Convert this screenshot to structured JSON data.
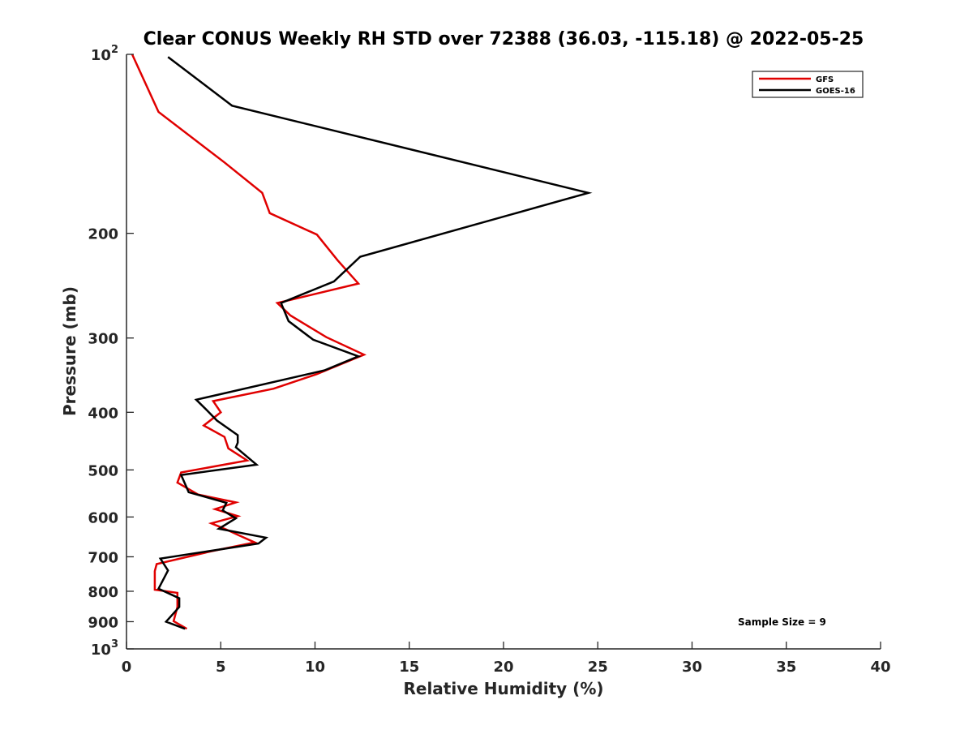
{
  "chart_data": {
    "type": "line",
    "title": "Clear CONUS Weekly RH STD over 72388 (36.03, -115.18) @ 2022-05-25",
    "xlabel": "Relative Humidity (%)",
    "ylabel": "Pressure (mb)",
    "xlim": [
      0,
      40
    ],
    "ylim": [
      100,
      1000
    ],
    "y_scale": "log",
    "y_reversed": true,
    "grid": false,
    "x_ticks": [
      0,
      5,
      10,
      15,
      20,
      25,
      30,
      35,
      40
    ],
    "x_tick_labels": [
      "0",
      "5",
      "10",
      "15",
      "20",
      "25",
      "30",
      "35",
      "40"
    ],
    "y_ticks": [
      100,
      200,
      300,
      400,
      500,
      600,
      700,
      800,
      900,
      1000
    ],
    "y_tick_labels": [
      {
        "value": 100,
        "base": "10",
        "exp": "2"
      },
      {
        "value": 200,
        "base": "200",
        "exp": ""
      },
      {
        "value": 300,
        "base": "300",
        "exp": ""
      },
      {
        "value": 400,
        "base": "400",
        "exp": ""
      },
      {
        "value": 500,
        "base": "500",
        "exp": ""
      },
      {
        "value": 600,
        "base": "600",
        "exp": ""
      },
      {
        "value": 700,
        "base": "700",
        "exp": ""
      },
      {
        "value": 800,
        "base": "800",
        "exp": ""
      },
      {
        "value": 900,
        "base": "900",
        "exp": ""
      },
      {
        "value": 1000,
        "base": "10",
        "exp": "3"
      }
    ],
    "legend_position": "top-right",
    "annotation": "Sample Size = 9",
    "series": [
      {
        "name": "GFS",
        "color": "#e00000",
        "points": [
          [
            0.3,
            100
          ],
          [
            1.7,
            125
          ],
          [
            5.2,
            152
          ],
          [
            7.2,
            171
          ],
          [
            7.6,
            185
          ],
          [
            10.1,
            201
          ],
          [
            11.2,
            222
          ],
          [
            12.3,
            243
          ],
          [
            8.0,
            262
          ],
          [
            8.7,
            275
          ],
          [
            10.6,
            299
          ],
          [
            12.6,
            320
          ],
          [
            10.1,
            345
          ],
          [
            7.8,
            365
          ],
          [
            4.6,
            383
          ],
          [
            5.0,
            400
          ],
          [
            4.1,
            421
          ],
          [
            5.2,
            440
          ],
          [
            5.4,
            460
          ],
          [
            6.4,
            482
          ],
          [
            2.9,
            505
          ],
          [
            2.7,
            525
          ],
          [
            3.8,
            550
          ],
          [
            5.8,
            567
          ],
          [
            4.7,
            582
          ],
          [
            5.9,
            598
          ],
          [
            4.5,
            615
          ],
          [
            5.3,
            630
          ],
          [
            6.0,
            645
          ],
          [
            6.8,
            662
          ],
          [
            4.5,
            685
          ],
          [
            1.6,
            720
          ],
          [
            1.5,
            740
          ],
          [
            1.5,
            760
          ],
          [
            1.5,
            795
          ],
          [
            2.7,
            805
          ],
          [
            2.7,
            850
          ],
          [
            2.5,
            898
          ],
          [
            3.2,
            925
          ]
        ]
      },
      {
        "name": "GOES-16",
        "color": "#000000",
        "points": [
          [
            2.2,
            101
          ],
          [
            5.6,
            122
          ],
          [
            24.5,
            171
          ],
          [
            12.4,
            219
          ],
          [
            11.0,
            241
          ],
          [
            8.2,
            262
          ],
          [
            8.6,
            281
          ],
          [
            9.9,
            302
          ],
          [
            12.3,
            322
          ],
          [
            10.5,
            340
          ],
          [
            3.7,
            381
          ],
          [
            4.2,
            395
          ],
          [
            4.8,
            413
          ],
          [
            5.9,
            437
          ],
          [
            5.9,
            450
          ],
          [
            5.8,
            458
          ],
          [
            6.9,
            490
          ],
          [
            2.9,
            510
          ],
          [
            3.3,
            545
          ],
          [
            5.3,
            568
          ],
          [
            5.1,
            585
          ],
          [
            5.8,
            603
          ],
          [
            4.9,
            628
          ],
          [
            7.4,
            650
          ],
          [
            7.0,
            665
          ],
          [
            1.8,
            705
          ],
          [
            2.2,
            738
          ],
          [
            1.7,
            792
          ],
          [
            2.8,
            822
          ],
          [
            2.8,
            850
          ],
          [
            2.1,
            900
          ],
          [
            3.1,
            925
          ]
        ]
      }
    ]
  }
}
